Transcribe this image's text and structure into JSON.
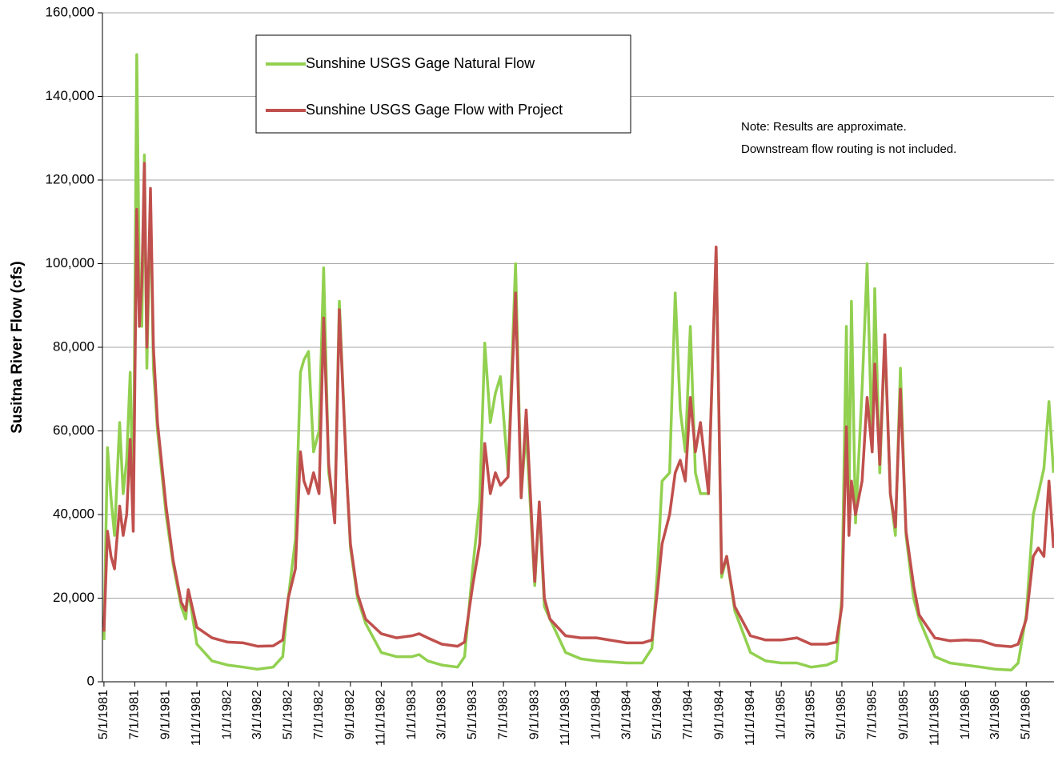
{
  "chart_data": {
    "type": "line",
    "y_label": "Susitna River Flow (cfs)",
    "annotations": [
      "Note: Results are approximate.",
      "Downstream flow routing is not included."
    ],
    "legend": "upper left",
    "grid": true,
    "xlim": [
      "4/28/1981",
      "6/25/1986"
    ],
    "xticks": [
      "5/1/1981",
      "7/1/1981",
      "9/1/1981",
      "11/1/1981",
      "1/1/1982",
      "3/1/1982",
      "5/1/1982",
      "7/1/1982",
      "9/1/1982",
      "11/1/1982",
      "1/1/1983",
      "3/1/1983",
      "5/1/1983",
      "7/1/1983",
      "9/1/1983",
      "11/1/1983",
      "1/1/1984",
      "3/1/1984",
      "5/1/1984",
      "7/1/1984",
      "9/1/1984",
      "11/1/1984",
      "1/1/1985",
      "3/1/1985",
      "5/1/1985",
      "7/1/1985",
      "9/1/1985",
      "11/1/1985",
      "1/1/1986",
      "3/1/1986",
      "5/1/1986"
    ],
    "ylim": [
      0,
      160000
    ],
    "yticks": [
      0,
      {
        "value": 20000,
        "label": "20,000"
      },
      {
        "value": 40000,
        "label": "40,000"
      },
      {
        "value": 60000,
        "label": "60,000"
      },
      {
        "value": 80000,
        "label": "80,000"
      },
      {
        "value": 100000,
        "label": "100,000"
      },
      {
        "value": 120000,
        "label": "120,000"
      },
      {
        "value": 140000,
        "label": "140,000"
      },
      {
        "value": 160000,
        "label": "160,000"
      }
    ],
    "x": [
      "5/1/1981",
      "5/8/1981",
      "5/15/1981",
      "5/22/1981",
      "6/1/1981",
      "6/8/1981",
      "6/15/1981",
      "6/22/1981",
      "6/28/1981",
      "7/5/1981",
      "7/10/1981",
      "7/15/1981",
      "7/20/1981",
      "7/25/1981",
      "8/1/1981",
      "8/7/1981",
      "8/15/1981",
      "9/1/1981",
      "9/15/1981",
      "10/1/1981",
      "10/10/1981",
      "10/15/1981",
      "11/1/1981",
      "12/1/1981",
      "1/1/1982",
      "2/1/1982",
      "3/1/1982",
      "4/1/1982",
      "4/20/1982",
      "5/1/1982",
      "5/15/1982",
      "5/25/1982",
      "6/1/1982",
      "6/10/1982",
      "6/20/1982",
      "7/1/1982",
      "7/10/1982",
      "7/20/1982",
      "8/1/1982",
      "8/10/1982",
      "8/25/1982",
      "9/1/1982",
      "9/15/1982",
      "10/1/1982",
      "11/1/1982",
      "12/1/1982",
      "1/1/1983",
      "1/15/1983",
      "2/1/1983",
      "3/1/1983",
      "4/1/1983",
      "4/15/1983",
      "5/1/1983",
      "5/15/1983",
      "5/25/1983",
      "6/5/1983",
      "6/15/1983",
      "6/25/1983",
      "7/10/1983",
      "7/25/1983",
      "8/5/1983",
      "8/15/1983",
      "9/1/1983",
      "9/10/1983",
      "9/20/1983",
      "10/1/1983",
      "11/1/1983",
      "12/1/1983",
      "1/1/1984",
      "3/1/1984",
      "4/1/1984",
      "4/20/1984",
      "5/1/1984",
      "5/10/1984",
      "5/25/1984",
      "6/5/1984",
      "6/15/1984",
      "6/25/1984",
      "7/5/1984",
      "7/15/1984",
      "7/25/1984",
      "8/10/1984",
      "8/25/1984",
      "9/5/1984",
      "9/15/1984",
      "10/1/1984",
      "11/1/1984",
      "12/1/1984",
      "1/1/1985",
      "2/1/1985",
      "3/1/1985",
      "4/1/1985",
      "4/20/1985",
      "5/1/1985",
      "5/10/1985",
      "5/15/1985",
      "5/20/1985",
      "5/28/1985",
      "6/10/1985",
      "6/20/1985",
      "6/30/1985",
      "7/5/1985",
      "7/15/1985",
      "7/25/1985",
      "8/5/1985",
      "8/15/1985",
      "8/25/1985",
      "9/5/1985",
      "9/20/1985",
      "10/1/1985",
      "11/1/1985",
      "12/1/1985",
      "1/1/1986",
      "2/1/1986",
      "3/1/1986",
      "4/1/1986",
      "4/15/1986",
      "5/1/1986",
      "5/15/1986",
      "5/25/1986",
      "6/5/1986",
      "6/15/1986",
      "6/24/1986"
    ],
    "series": [
      {
        "name": "Sunshine USGS Gage Natural Flow",
        "color": "#92d050",
        "values": [
          10000,
          56000,
          44000,
          35000,
          62000,
          45000,
          53000,
          74000,
          40000,
          150000,
          95000,
          85000,
          126000,
          75000,
          115000,
          75000,
          60000,
          40000,
          28000,
          18000,
          15000,
          22000,
          9000,
          5000,
          4000,
          3500,
          3000,
          3500,
          6000,
          20000,
          34000,
          74000,
          77000,
          79000,
          55000,
          60000,
          99000,
          50000,
          40000,
          91000,
          48000,
          32000,
          20000,
          14000,
          7000,
          6000,
          6000,
          6500,
          5000,
          4000,
          3500,
          6000,
          27000,
          43000,
          81000,
          62000,
          69000,
          73000,
          50000,
          100000,
          45000,
          60000,
          23000,
          42000,
          18000,
          15000,
          7000,
          5500,
          5000,
          4500,
          4500,
          8000,
          27000,
          48000,
          50000,
          93000,
          65000,
          55000,
          85000,
          50000,
          45000,
          45000,
          103000,
          25000,
          30000,
          17000,
          7000,
          5000,
          4500,
          4500,
          3500,
          4000,
          5000,
          20000,
          85000,
          42000,
          91000,
          38000,
          70000,
          100000,
          55000,
          94000,
          50000,
          82000,
          45000,
          35000,
          75000,
          35000,
          20000,
          15000,
          6000,
          4500,
          4000,
          3500,
          3000,
          2800,
          4500,
          16000,
          40000,
          45000,
          51000,
          67000,
          50000
        ]
      },
      {
        "name": "Sunshine USGS Gage Flow with Project",
        "color": "#c0504d",
        "values": [
          12000,
          36000,
          30000,
          27000,
          42000,
          35000,
          40000,
          58000,
          36000,
          113000,
          85000,
          95000,
          124000,
          80000,
          118000,
          80000,
          62000,
          42000,
          29000,
          19000,
          17000,
          22000,
          13000,
          10500,
          9500,
          9300,
          8500,
          8600,
          10000,
          20000,
          27000,
          55000,
          48000,
          45000,
          50000,
          45000,
          87000,
          52000,
          38000,
          89000,
          48000,
          33000,
          21000,
          15000,
          11500,
          10500,
          11000,
          11500,
          10500,
          9000,
          8500,
          9500,
          23000,
          33000,
          57000,
          45000,
          50000,
          47000,
          49000,
          93000,
          44000,
          65000,
          24000,
          43000,
          20000,
          15000,
          11000,
          10500,
          10500,
          9300,
          9300,
          10000,
          22000,
          33000,
          40000,
          50000,
          53000,
          48000,
          68000,
          55000,
          62000,
          45000,
          104000,
          26000,
          30000,
          18000,
          11000,
          10000,
          10000,
          10500,
          9000,
          9000,
          9500,
          18000,
          61000,
          35000,
          48000,
          40000,
          48000,
          68000,
          55000,
          76000,
          52000,
          83000,
          45000,
          37000,
          70000,
          36000,
          23000,
          16000,
          10500,
          9800,
          10000,
          9800,
          8700,
          8400,
          9000,
          15000,
          30000,
          32000,
          30000,
          48000,
          32000
        ]
      }
    ]
  }
}
